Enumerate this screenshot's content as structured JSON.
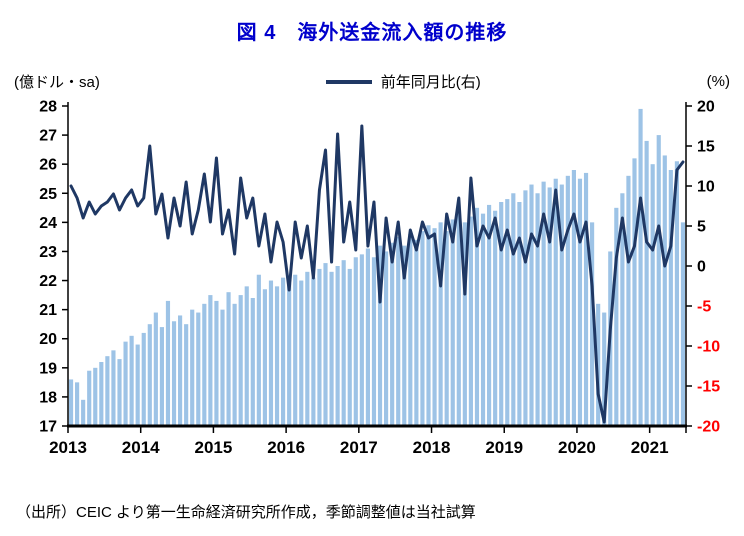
{
  "title": "図 4　海外送金流入額の推移",
  "legend": {
    "line_label": "前年同月比(右)"
  },
  "axes": {
    "left_unit": "(億ドル・sa)",
    "right_unit": "(%)",
    "left_ticks": [
      28,
      27,
      26,
      25,
      24,
      23,
      22,
      21,
      20,
      19,
      18,
      17
    ],
    "right_ticks": [
      20,
      15,
      10,
      5,
      0,
      -5,
      -10,
      -15,
      -20
    ]
  },
  "source_note": "（出所）CEIC より第一生命経済研究所作成，季節調整値は当社試算",
  "colors": {
    "title": "#0000CC",
    "bar": "#9DC3E6",
    "line": "#1F3864",
    "axis": "#000000",
    "negative_tick": "#FF0000"
  },
  "chart_data": {
    "type": "bar+line combo",
    "title": "図 4　海外送金流入額の推移",
    "x_start": "2013-01",
    "x_end": "2021-06",
    "x_years": [
      2013,
      2014,
      2015,
      2016,
      2017,
      2018,
      2019,
      2020,
      2021
    ],
    "left_axis": {
      "label": "(億ドル・sa)",
      "ylim": [
        17,
        28
      ],
      "tick_step": 1
    },
    "right_axis": {
      "label": "(%)",
      "ylim": [
        -20,
        20
      ],
      "tick_step": 5
    },
    "legend_position": "top-center",
    "grid": false,
    "bar_series": {
      "name": "海外送金流入額（億ドル・sa、左）",
      "values": [
        18.6,
        18.5,
        17.9,
        18.9,
        19.0,
        19.2,
        19.4,
        19.6,
        19.3,
        19.9,
        20.1,
        19.8,
        20.2,
        20.5,
        20.9,
        20.4,
        21.3,
        20.6,
        20.8,
        20.5,
        21.0,
        20.9,
        21.2,
        21.5,
        21.3,
        21.0,
        21.6,
        21.2,
        21.5,
        21.8,
        21.4,
        22.2,
        21.7,
        22.0,
        21.8,
        22.1,
        21.9,
        22.2,
        22.0,
        22.3,
        22.1,
        22.4,
        22.6,
        22.3,
        22.5,
        22.7,
        22.4,
        22.8,
        22.9,
        23.1,
        22.8,
        23.2,
        23.0,
        23.3,
        23.5,
        23.2,
        23.6,
        23.4,
        23.7,
        23.9,
        23.8,
        24.0,
        23.7,
        24.1,
        24.3,
        24.0,
        24.2,
        24.5,
        24.3,
        24.6,
        24.4,
        24.7,
        24.8,
        25.0,
        24.7,
        25.1,
        25.3,
        25.0,
        25.4,
        25.2,
        25.5,
        25.3,
        25.6,
        25.8,
        25.5,
        25.7,
        24.0,
        21.2,
        20.9,
        23.0,
        24.5,
        25.0,
        25.6,
        26.2,
        27.9,
        26.8,
        26.0,
        27.0,
        26.3,
        25.8,
        26.1,
        24.0
      ]
    },
    "line_series": {
      "name": "前年同月比(右)",
      "unit": "%",
      "values": [
        10.0,
        8.5,
        6.0,
        8.0,
        6.5,
        7.5,
        8.0,
        9.0,
        7.0,
        8.5,
        9.5,
        7.5,
        8.5,
        15.0,
        6.5,
        9.0,
        3.5,
        8.5,
        5.0,
        10.5,
        4.0,
        7.0,
        11.5,
        5.5,
        13.5,
        4.0,
        7.0,
        1.5,
        11.0,
        6.0,
        8.5,
        2.5,
        6.5,
        0.5,
        5.5,
        3.0,
        -3.0,
        5.5,
        1.0,
        5.0,
        -1.5,
        9.5,
        14.5,
        0.5,
        16.5,
        3.0,
        8.0,
        2.0,
        17.5,
        2.5,
        8.0,
        -4.5,
        6.0,
        0.5,
        5.5,
        -1.5,
        4.5,
        2.0,
        5.5,
        3.5,
        4.0,
        -2.5,
        6.5,
        3.0,
        8.5,
        -3.5,
        11.0,
        2.5,
        5.0,
        3.5,
        6.0,
        2.0,
        4.5,
        1.5,
        3.5,
        0.5,
        4.0,
        2.5,
        6.5,
        3.0,
        9.5,
        2.0,
        4.5,
        6.5,
        3.0,
        5.5,
        -2.5,
        -16.0,
        -19.5,
        -8.0,
        1.0,
        6.0,
        0.5,
        2.5,
        8.5,
        3.0,
        2.0,
        5.0,
        0.0,
        2.5,
        12.0,
        13.0
      ]
    }
  }
}
